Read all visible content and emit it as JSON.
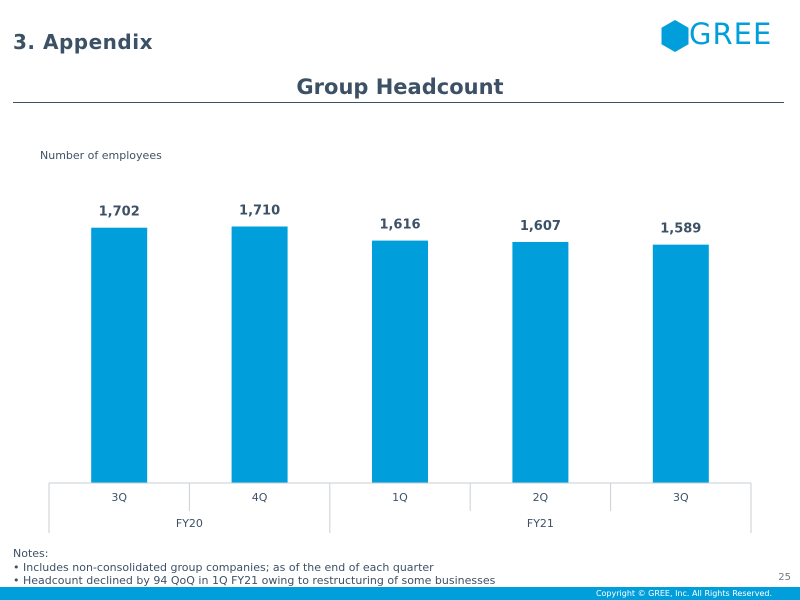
{
  "header": {
    "section_title": "3. Appendix",
    "page_title": "Group Headcount",
    "logo_text": "GREE",
    "logo_icon": "hexagon-icon",
    "brand_color": "#009fdb"
  },
  "chart_data": {
    "type": "bar",
    "title": "Group Headcount",
    "ylabel": "Number of employees",
    "xlabel": "",
    "categories": [
      "3Q",
      "4Q",
      "1Q",
      "2Q",
      "3Q"
    ],
    "groups": [
      {
        "label": "FY20",
        "count": 2
      },
      {
        "label": "FY21",
        "count": 3
      }
    ],
    "values": [
      1702,
      1710,
      1616,
      1607,
      1589
    ],
    "value_labels": [
      "1,702",
      "1,710",
      "1,616",
      "1,607",
      "1,589"
    ],
    "ylim": [
      0,
      1900
    ],
    "grid": false,
    "bar_color": "#009fdb"
  },
  "notes": {
    "heading": "Notes:",
    "items": [
      "• Includes non-consolidated group companies; as of the end of each quarter",
      "• Headcount declined by 94 QoQ in 1Q FY21 owing to restructuring of some businesses"
    ]
  },
  "footer": {
    "page_number": "25",
    "copyright": "Copyright © GREE, Inc. All Rights Reserved."
  }
}
